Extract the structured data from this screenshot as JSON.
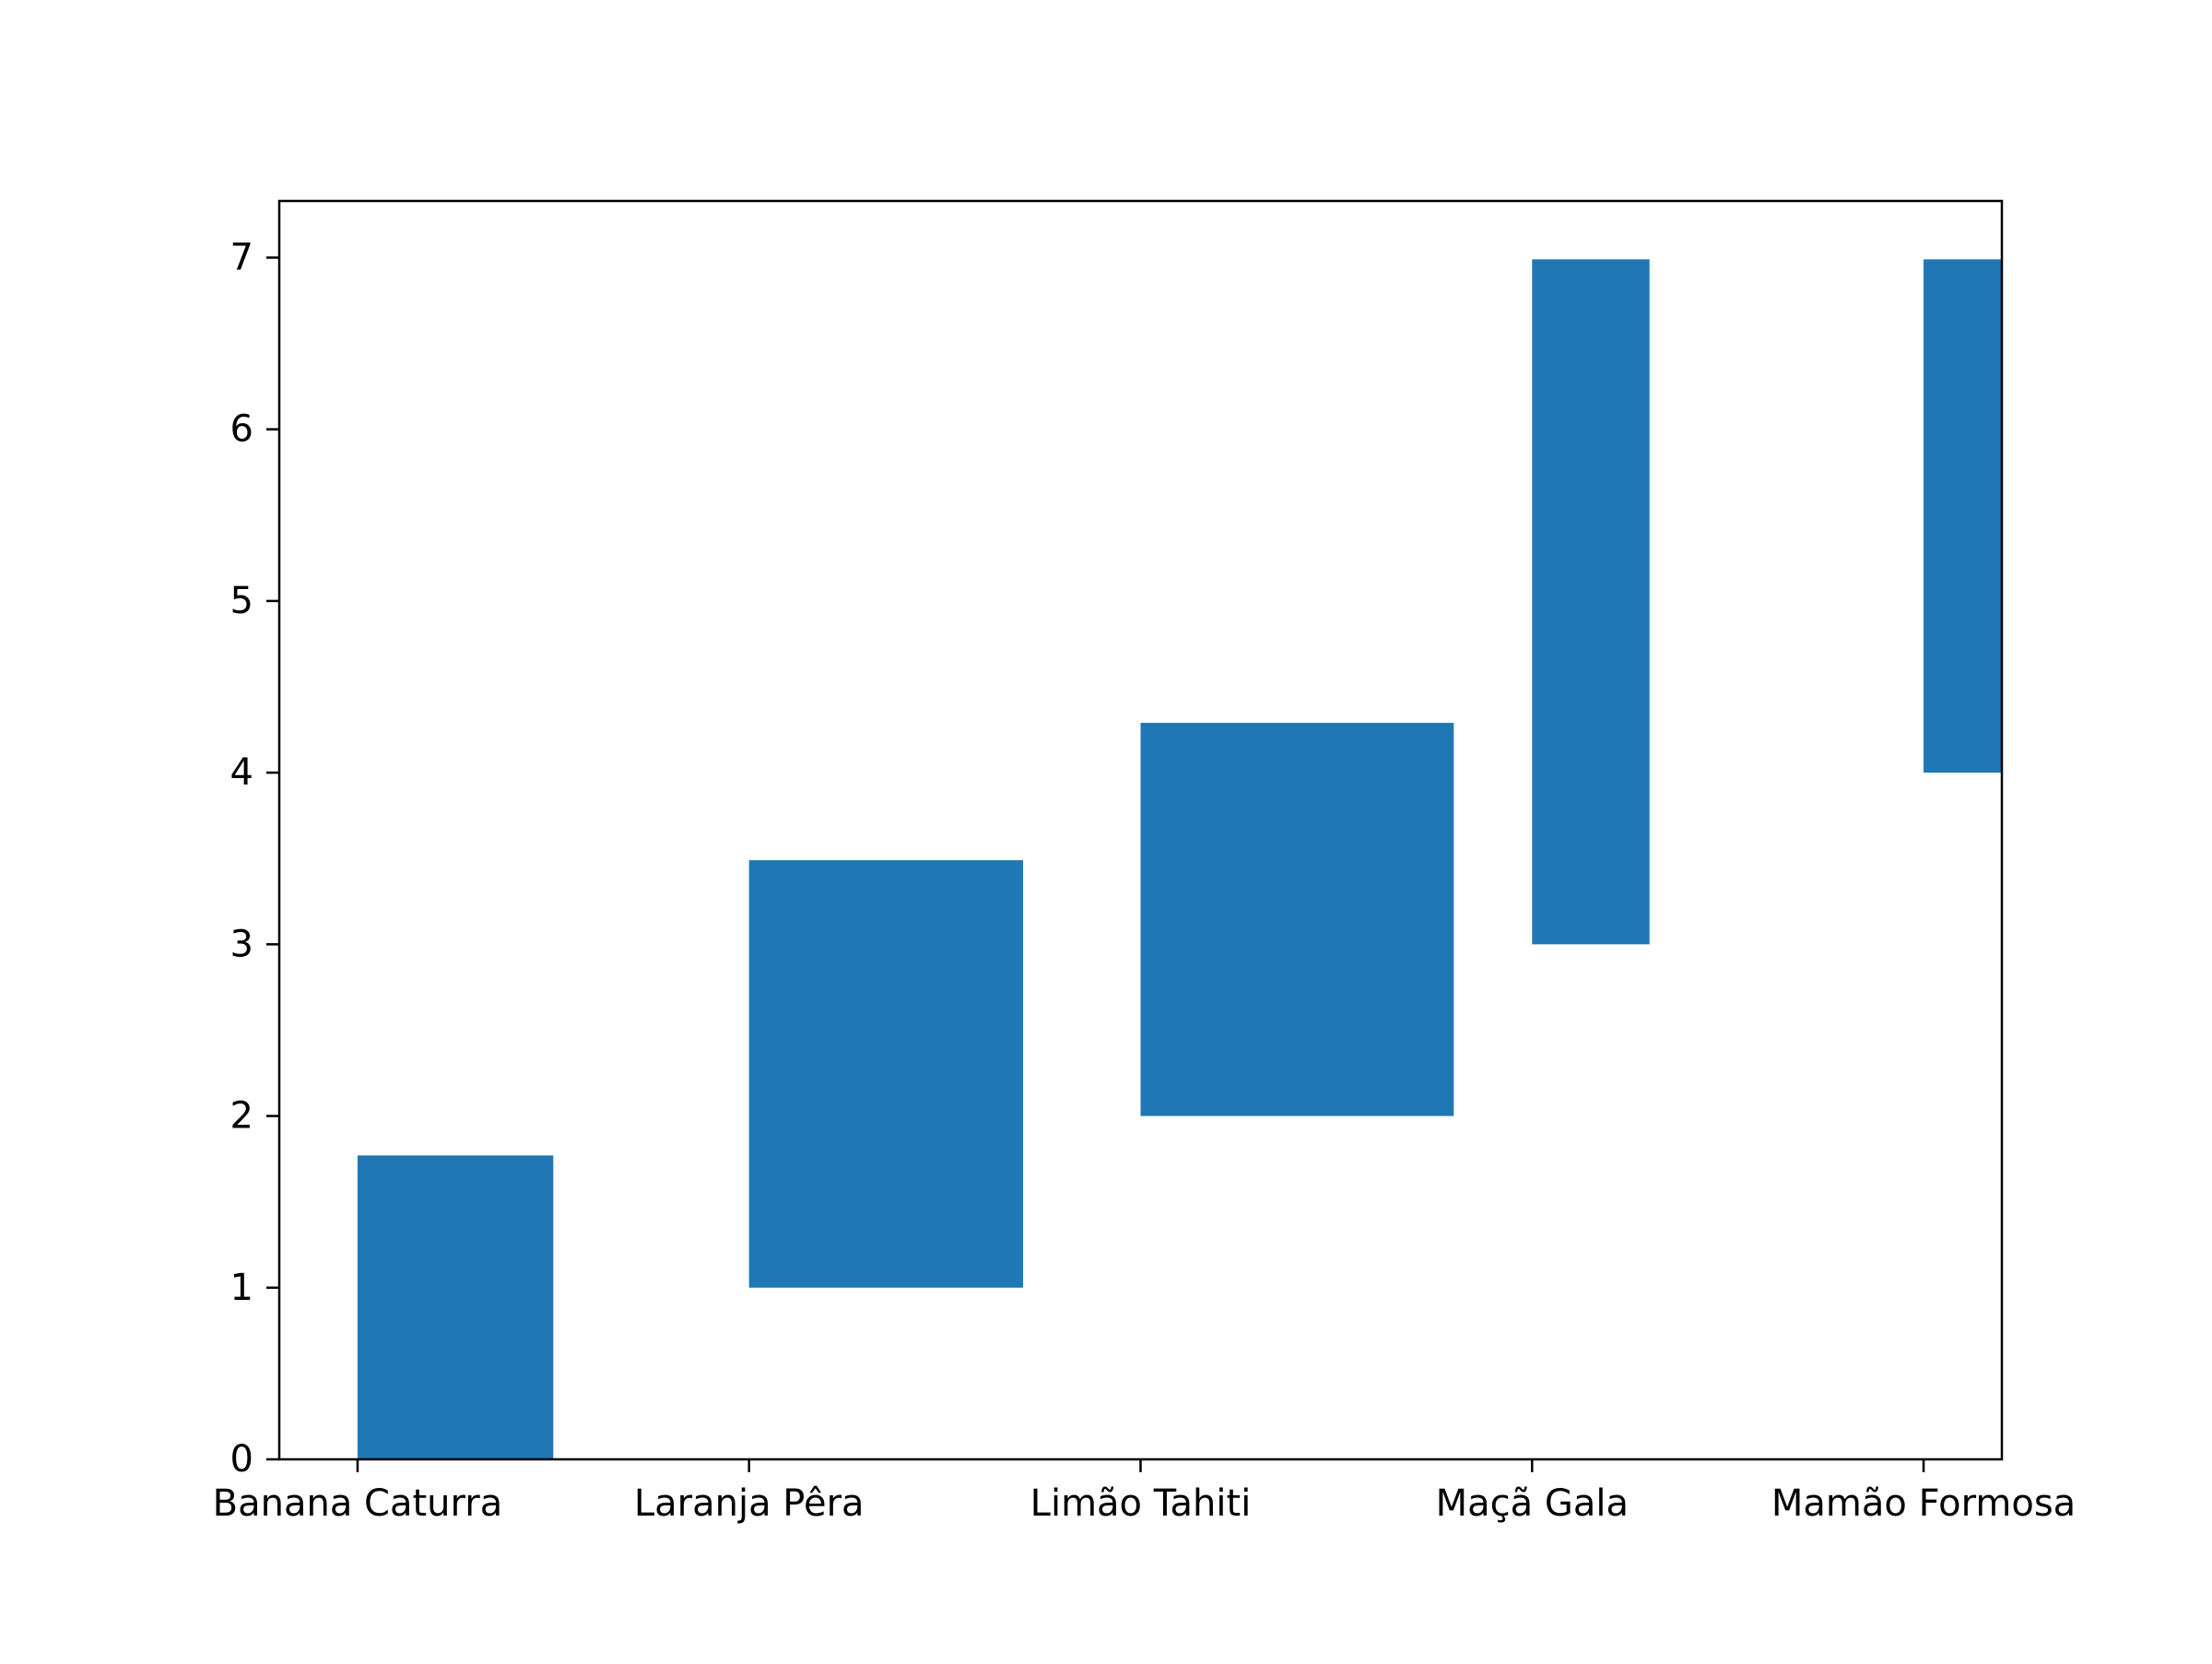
{
  "chart_data": {
    "type": "bar",
    "categories": [
      "Banana Caturra",
      "Laranja Pêra",
      "Limão Tahiti",
      "Maçã Gala",
      "Mamão Formosa"
    ],
    "bars": [
      {
        "category": "Banana Caturra",
        "x_start": 0.0,
        "x_end": 0.5,
        "bottom": 0.0,
        "top": 1.77
      },
      {
        "category": "Laranja Pêra",
        "x_start": 1.0,
        "x_end": 1.7,
        "bottom": 1.0,
        "top": 3.49
      },
      {
        "category": "Limão Tahiti",
        "x_start": 2.0,
        "x_end": 2.8,
        "bottom": 2.0,
        "top": 4.29
      },
      {
        "category": "Maçã Gala",
        "x_start": 3.0,
        "x_end": 3.3,
        "bottom": 3.0,
        "top": 6.99
      },
      {
        "category": "Mamão Formosa",
        "x_start": 4.0,
        "x_end": 4.0,
        "bottom": 4.0,
        "top": 6.99
      }
    ],
    "xticks": [
      0,
      1,
      2,
      3,
      4
    ],
    "yticks": [
      0,
      1,
      2,
      3,
      4,
      5,
      6,
      7
    ],
    "ytick_labels": [
      "0",
      "1",
      "2",
      "3",
      "4",
      "5",
      "6",
      "7"
    ],
    "xlim": [
      -0.2,
      4.2
    ],
    "ylim": [
      0,
      7.33
    ],
    "title": "",
    "xlabel": "",
    "ylabel": "",
    "grid": false,
    "bar_color": "#1f77b4"
  }
}
